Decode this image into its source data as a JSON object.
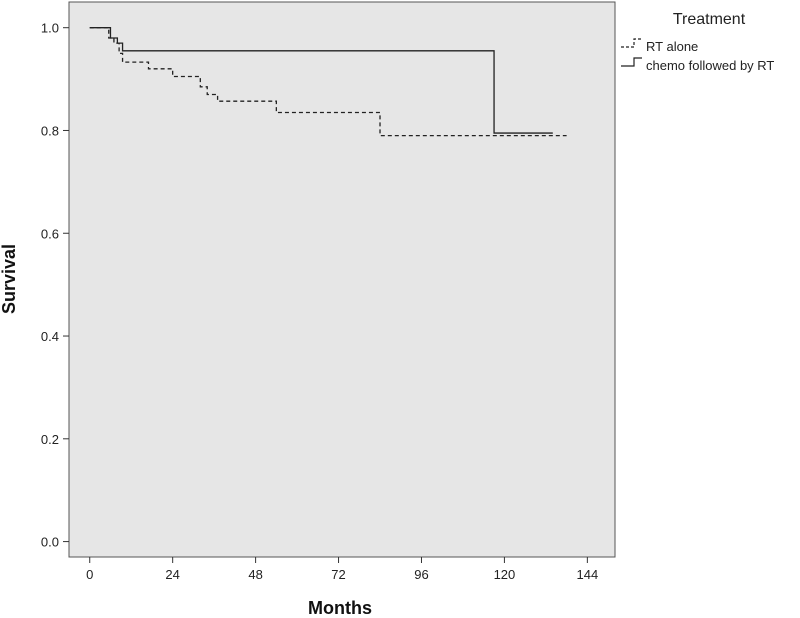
{
  "chart_data": {
    "type": "line",
    "step": true,
    "xlabel": "Months",
    "ylabel": "Survival",
    "xlim": [
      -6,
      152
    ],
    "ylim": [
      -0.03,
      1.05
    ],
    "xticks": [
      "0",
      "24",
      "48",
      "72",
      "96",
      "120",
      "144"
    ],
    "yticks": [
      "0.0",
      "0.2",
      "0.4",
      "0.6",
      "0.8",
      "1.0"
    ],
    "grid": false,
    "plot_background": "#e6e6e6",
    "legend": {
      "title": "Treatment",
      "position": "top-right-outside"
    },
    "series": [
      {
        "name": "RT alone",
        "dash": "dashed",
        "color": "#222222",
        "x": [
          0,
          5.5,
          7.0,
          8.5,
          9.5,
          17,
          24,
          32,
          34,
          37,
          54,
          84,
          138
        ],
        "y": [
          1.0,
          0.98,
          0.97,
          0.95,
          0.933,
          0.92,
          0.905,
          0.885,
          0.87,
          0.857,
          0.835,
          0.79,
          0.79
        ]
      },
      {
        "name": "chemo followed by RT",
        "dash": "solid",
        "color": "#222222",
        "x": [
          0,
          6,
          8,
          9.5,
          117,
          134
        ],
        "y": [
          1.0,
          0.98,
          0.97,
          0.955,
          0.795,
          0.795
        ]
      }
    ]
  }
}
